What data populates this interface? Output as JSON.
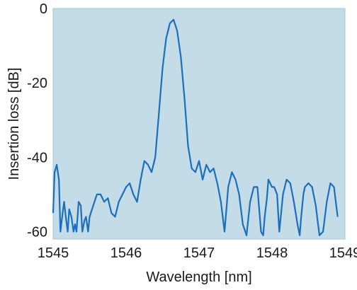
{
  "chart_data": {
    "type": "line",
    "title": "",
    "xlabel": "Wavelength [nm]",
    "ylabel": "Insertion loss [dB]",
    "xlim": [
      1545,
      1549
    ],
    "ylim": [
      -62,
      0
    ],
    "xticks": [
      1545,
      1546,
      1547,
      1548,
      1549
    ],
    "yticks": [
      0,
      -20,
      -40,
      -60
    ],
    "xtick_labels": [
      "1545",
      "1546",
      "1547",
      "1548",
      "1549"
    ],
    "ytick_labels": [
      "0",
      "-20",
      "-40",
      "-60"
    ],
    "grid": false,
    "legend": "none",
    "colors": {
      "plot_background": "#c4dbe8",
      "line": "#1a6fbe",
      "frame": "#a9c4d4"
    },
    "series": [
      {
        "x": [
          1545.0,
          1545.02,
          1545.05,
          1545.08,
          1545.1,
          1545.13,
          1545.15,
          1545.18,
          1545.2,
          1545.22,
          1545.25,
          1545.28,
          1545.3,
          1545.32,
          1545.35,
          1545.38,
          1545.4,
          1545.43,
          1545.45,
          1545.48,
          1545.5,
          1545.55,
          1545.6,
          1545.65,
          1545.7,
          1545.75,
          1545.8,
          1545.85,
          1545.9,
          1545.95,
          1546.0,
          1546.05,
          1546.1,
          1546.15,
          1546.2,
          1546.25,
          1546.3,
          1546.35,
          1546.4,
          1546.45,
          1546.5,
          1546.55,
          1546.6,
          1546.65,
          1546.7,
          1546.75,
          1546.8,
          1546.85,
          1546.9,
          1546.95,
          1547.0,
          1547.05,
          1547.1,
          1547.15,
          1547.2,
          1547.25,
          1547.3,
          1547.35,
          1547.4,
          1547.45,
          1547.5,
          1547.55,
          1547.6,
          1547.65,
          1547.7,
          1547.75,
          1547.8,
          1547.85,
          1547.88,
          1547.9,
          1547.93,
          1547.95,
          1548.0,
          1548.03,
          1548.07,
          1548.1,
          1548.15,
          1548.2,
          1548.25,
          1548.3,
          1548.35,
          1548.38,
          1548.4,
          1548.43,
          1548.45,
          1548.5,
          1548.55,
          1548.6,
          1548.65,
          1548.7,
          1548.75,
          1548.8,
          1548.85,
          1548.9
        ],
        "y": [
          -55,
          -44,
          -42,
          -46,
          -60,
          -55,
          -52,
          -57,
          -60,
          -54,
          -56,
          -60,
          -58,
          -60,
          -52,
          -53,
          -60,
          -57,
          -56,
          -60,
          -56,
          -53,
          -50,
          -50,
          -52,
          -51,
          -55,
          -56,
          -52,
          -50,
          -48,
          -47,
          -50,
          -52,
          -46,
          -41,
          -42,
          -44,
          -40,
          -28,
          -16,
          -8,
          -4,
          -3,
          -6,
          -13,
          -24,
          -37,
          -43,
          -44,
          -41,
          -46,
          -42,
          -44,
          -43,
          -47,
          -52,
          -60,
          -48,
          -44,
          -46,
          -50,
          -58,
          -61,
          -52,
          -48,
          -48,
          -60,
          -61,
          -56,
          -51,
          -46,
          -48,
          -48,
          -50,
          -60,
          -50,
          -46,
          -47,
          -52,
          -58,
          -61,
          -56,
          -50,
          -48,
          -47,
          -48,
          -53,
          -61,
          -60,
          -52,
          -47,
          -48,
          -56
        ]
      }
    ]
  }
}
